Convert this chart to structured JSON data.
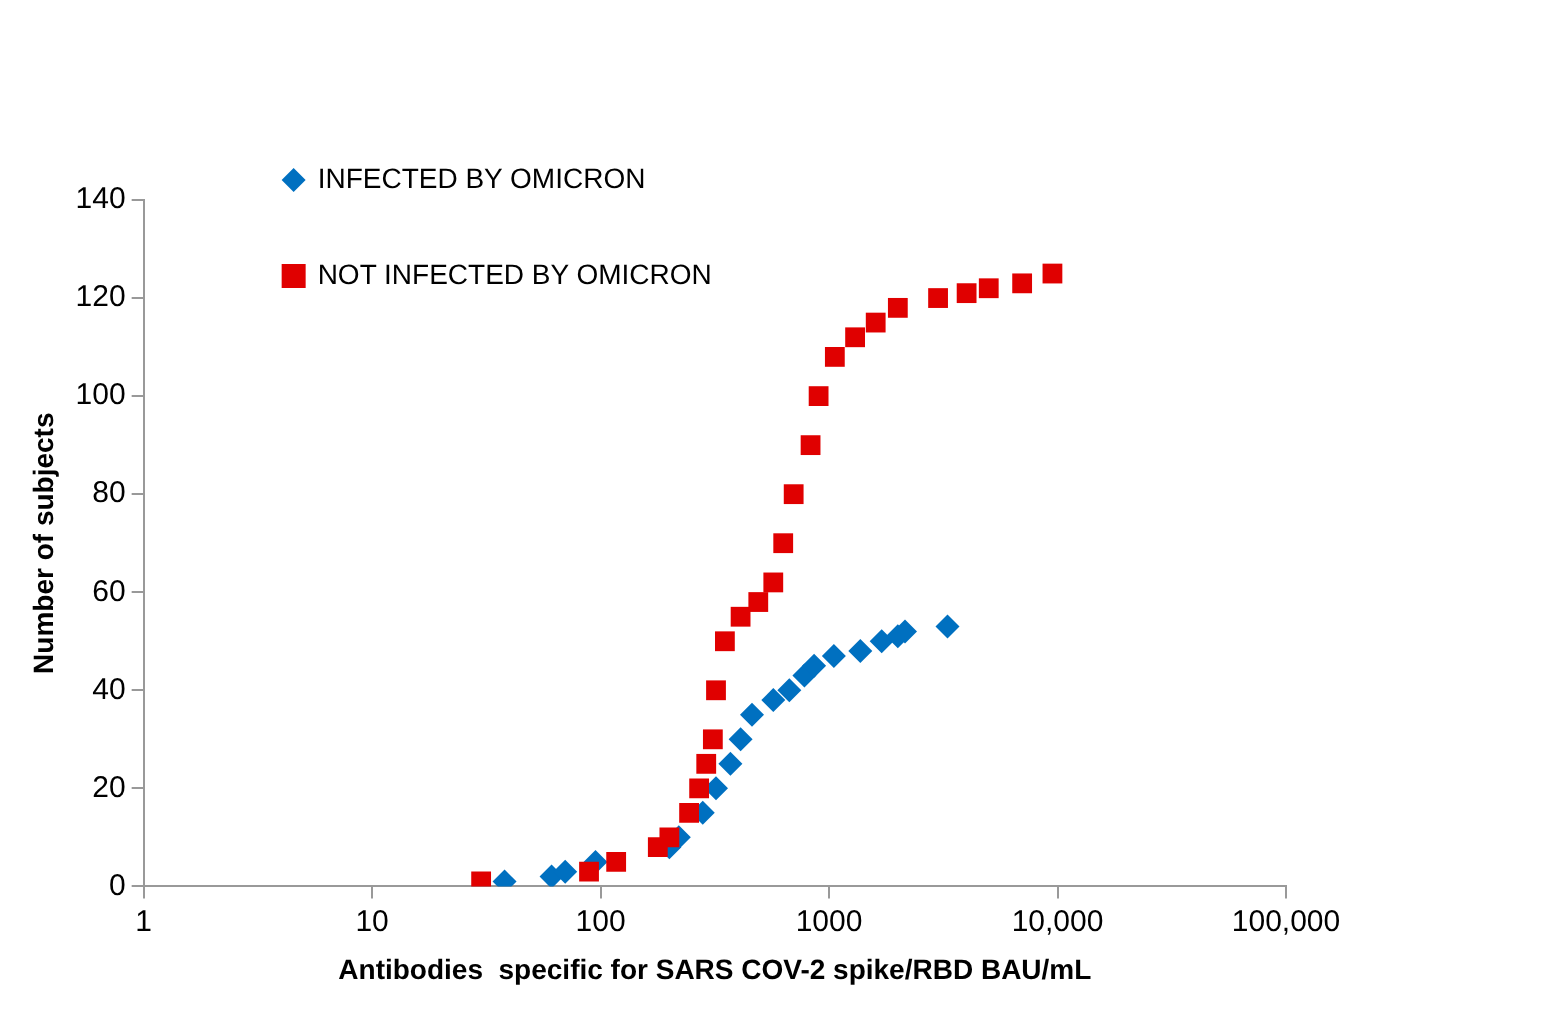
{
  "chart_data": {
    "type": "scatter",
    "xlabel": "Antibodies  specific for SARS COV-2 spike/RBD BAU/mL",
    "ylabel": "Number of subjects",
    "log": "x",
    "xlim": [
      1,
      100000
    ],
    "xticks": [
      1,
      10,
      100,
      1000,
      {
        "value": 10000,
        "label": "10,000"
      },
      {
        "value": 100000,
        "label": "100,000"
      }
    ],
    "ylim": [
      0,
      140
    ],
    "yticks": [
      0,
      20,
      40,
      60,
      80,
      100,
      120,
      140
    ],
    "grid": false,
    "legend": "top left",
    "series": [
      {
        "name": "INFECTED BY OMICRON",
        "color": "#0070c0",
        "marker": "diamond",
        "x": [
          38,
          61,
          70,
          95,
          200,
          220,
          280,
          320,
          370,
          410,
          460,
          570,
          670,
          780,
          860,
          1050,
          1370,
          1700,
          2000,
          2150,
          3300
        ],
        "values": [
          1,
          2,
          3,
          5,
          8,
          10,
          15,
          20,
          25,
          30,
          35,
          38,
          40,
          43,
          45,
          47,
          48,
          50,
          51,
          52,
          53
        ]
      },
      {
        "name": "NOT INFECTED BY OMICRON",
        "color": "#e00000",
        "marker": "square",
        "x": [
          30,
          89,
          117,
          178,
          200,
          244,
          270,
          290,
          310,
          320,
          350,
          410,
          490,
          570,
          630,
          700,
          830,
          900,
          1060,
          1300,
          1600,
          2000,
          3000,
          4000,
          5000,
          7000,
          9500
        ],
        "values": [
          1,
          3,
          5,
          8,
          10,
          15,
          20,
          25,
          30,
          40,
          50,
          55,
          58,
          62,
          70,
          80,
          90,
          100,
          108,
          112,
          115,
          118,
          120,
          121,
          122,
          123,
          125
        ]
      }
    ]
  }
}
